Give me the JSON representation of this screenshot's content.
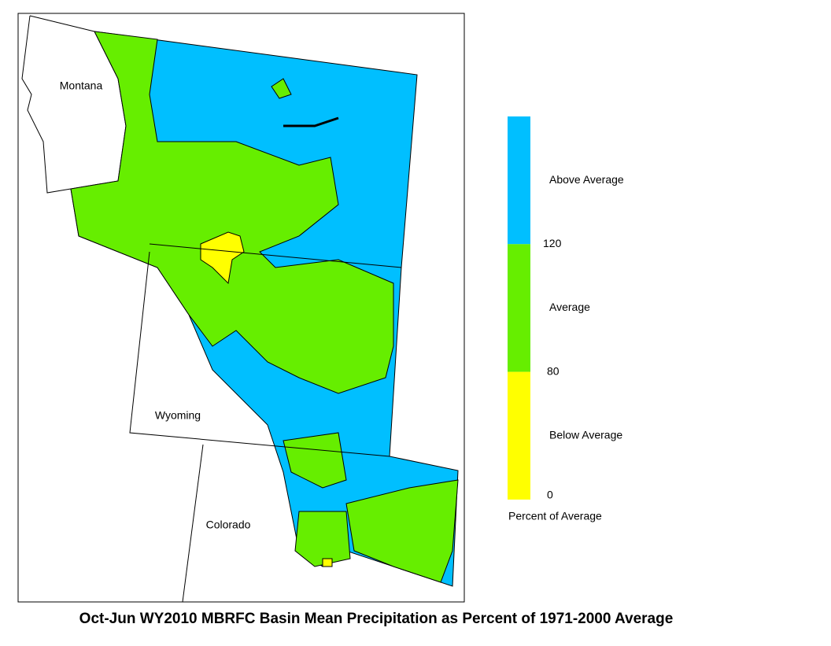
{
  "title": "Oct-Jun WY2010 MBRFC Basin Mean Precipitation as Percent of 1971-2000 Average",
  "map": {
    "labels": [
      "Montana",
      "Wyoming",
      "Colorado"
    ]
  },
  "legend": {
    "title": "Percent of Average",
    "classes": [
      {
        "label": "Above Average",
        "color": "#00bfff"
      },
      {
        "label": "Average",
        "color": "#66ee00"
      },
      {
        "label": "Below Average",
        "color": "#ffff00"
      }
    ],
    "boundaries": [
      120,
      80,
      0
    ]
  }
}
